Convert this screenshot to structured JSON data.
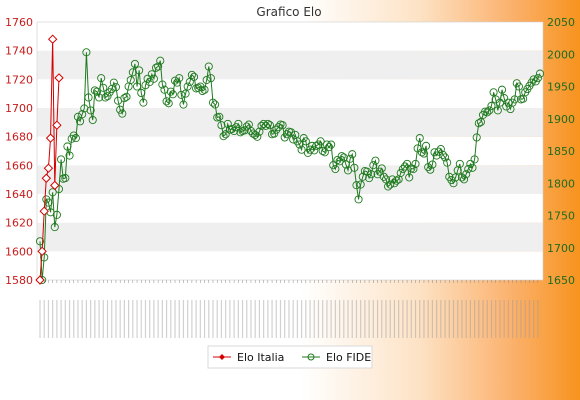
{
  "chart_data": {
    "type": "line",
    "title": "Grafico Elo",
    "xlabel": "",
    "ylabel": "",
    "x_tick_labels_legible": false,
    "left_axis": {
      "min": 1580,
      "max": 1760,
      "ticks": [
        1580,
        1600,
        1620,
        1640,
        1660,
        1680,
        1700,
        1720,
        1740,
        1760
      ],
      "color": "#c81b1b"
    },
    "right_axis": {
      "min": 1650,
      "max": 2050,
      "ticks": [
        1650,
        1700,
        1750,
        1800,
        1850,
        1900,
        1950,
        2000,
        2050
      ],
      "color": "#1f6b1f"
    },
    "grid": "horizontal bands",
    "legend_position": "bottom",
    "series": [
      {
        "name": "Elo Italia",
        "axis": "left",
        "color": "#d40000",
        "marker": "diamond",
        "values": [
          1580,
          1600,
          1628,
          1651,
          1658,
          1679,
          1748,
          1646,
          1688,
          1721
        ]
      },
      {
        "name": "Elo FIDE",
        "axis": "right",
        "color": "#1f7a1f",
        "marker": "circle",
        "values": [
          1710,
          1650,
          1685,
          1775,
          1770,
          1755,
          1786,
          1732,
          1751,
          1791,
          1837,
          1807,
          1808,
          1857,
          1843,
          1869,
          1874,
          1870,
          1903,
          1896,
          1907,
          1916,
          2003,
          1933,
          1913,
          1898,
          1944,
          1942,
          1933,
          1963,
          1948,
          1933,
          1935,
          1941,
          1946,
          1956,
          1949,
          1928,
          1914,
          1908,
          1932,
          1934,
          1950,
          1960,
          1972,
          1985,
          1950,
          1975,
          1940,
          1925,
          1952,
          1962,
          1957,
          1969,
          1962,
          1979,
          1981,
          1990,
          1953,
          1945,
          1927,
          1924,
          1942,
          1938,
          1959,
          1956,
          1963,
          1937,
          1922,
          1939,
          1950,
          1957,
          1968,
          1965,
          1947,
          1948,
          1950,
          1943,
          1945,
          1960,
          1981,
          1963,
          1925,
          1922,
          1902,
          1903,
          1890,
          1873,
          1876,
          1892,
          1883,
          1884,
          1881,
          1887,
          1892,
          1879,
          1881,
          1882,
          1888,
          1891,
          1881,
          1877,
          1875,
          1872,
          1880,
          1889,
          1892,
          1889,
          1892,
          1890,
          1876,
          1877,
          1883,
          1887,
          1891,
          1890,
          1871,
          1876,
          1880,
          1879,
          1868,
          1875,
          1865,
          1860,
          1852,
          1870,
          1865,
          1847,
          1852,
          1858,
          1851,
          1858,
          1860,
          1865,
          1850,
          1848,
          1860,
          1856,
          1860,
          1828,
          1822,
          1836,
          1834,
          1842,
          1840,
          1829,
          1820,
          1838,
          1845,
          1824,
          1797,
          1775,
          1798,
          1810,
          1819,
          1818,
          1808,
          1814,
          1828,
          1835,
          1814,
          1818,
          1823,
          1810,
          1806,
          1795,
          1798,
          1806,
          1800,
          1804,
          1806,
          1816,
          1822,
          1826,
          1830,
          1809,
          1823,
          1822,
          1830,
          1854,
          1870,
          1848,
          1846,
          1858,
          1825,
          1821,
          1829,
          1848,
          1843,
          1849,
          1853,
          1844,
          1840,
          1832,
          1810,
          1805,
          1800,
          1809,
          1820,
          1830,
          1809,
          1806,
          1814,
          1822,
          1830,
          1824,
          1837,
          1871,
          1893,
          1895,
          1906,
          1911,
          1910,
          1913,
          1920,
          1941,
          1930,
          1913,
          1925,
          1945,
          1932,
          1919,
          1925,
          1915,
          1925,
          1930,
          1955,
          1950,
          1930,
          1931,
          1941,
          1946,
          1951,
          1956,
          1961,
          1958,
          1963,
          1970
        ]
      }
    ]
  }
}
